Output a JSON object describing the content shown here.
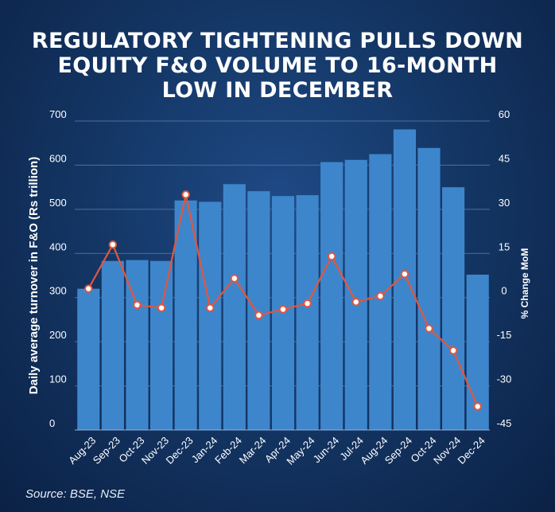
{
  "title_lines": [
    "REGULATORY TIGHTENING PULLS DOWN",
    "EQUITY F&O VOLUME TO 16-MONTH",
    "LOW IN DECEMBER"
  ],
  "source": "Source: BSE, NSE",
  "colors": {
    "bar": "#3e86cc",
    "line": "#e0573f",
    "marker_fill": "#ffffff",
    "grid": "#4d6f9c",
    "text": "#ffffff"
  },
  "chart_data": {
    "type": "bar+line",
    "categories": [
      "Aug-23",
      "Sep-23",
      "Oct-23",
      "Nov-23",
      "Dec-23",
      "Jan-24",
      "Feb-24",
      "Mar-24",
      "Apr-24",
      "May-24",
      "Jun-24",
      "Jul-24",
      "Aug-24",
      "Sep-24",
      "Oct-24",
      "Nov-24",
      "Dec-24"
    ],
    "series": [
      {
        "name": "Daily average turnover",
        "axis": "left",
        "kind": "bar",
        "values": [
          320,
          383,
          385,
          383,
          520,
          517,
          557,
          541,
          530,
          532,
          607,
          612,
          625,
          681,
          639,
          550,
          352
        ]
      },
      {
        "name": "% Change MoM",
        "axis": "right",
        "kind": "line",
        "values": [
          3,
          18,
          -2.5,
          -3.5,
          35,
          -3.5,
          6.5,
          -6,
          -4,
          -2,
          14,
          -1.5,
          0.5,
          8,
          -10.5,
          -18,
          -37
        ]
      }
    ],
    "ylabel": "Daily average turnover in F&O (Rs trillion)",
    "y2label": "% Change MoM",
    "ylim": [
      0,
      700
    ],
    "y2lim": [
      -45,
      60
    ],
    "yticks": [
      "0",
      "100",
      "200",
      "300",
      "400",
      "500",
      "600",
      "700"
    ],
    "y2ticks": [
      "-45",
      "-30",
      "-15",
      "0",
      "15",
      "30",
      "45",
      "60"
    ],
    "grid": true
  }
}
